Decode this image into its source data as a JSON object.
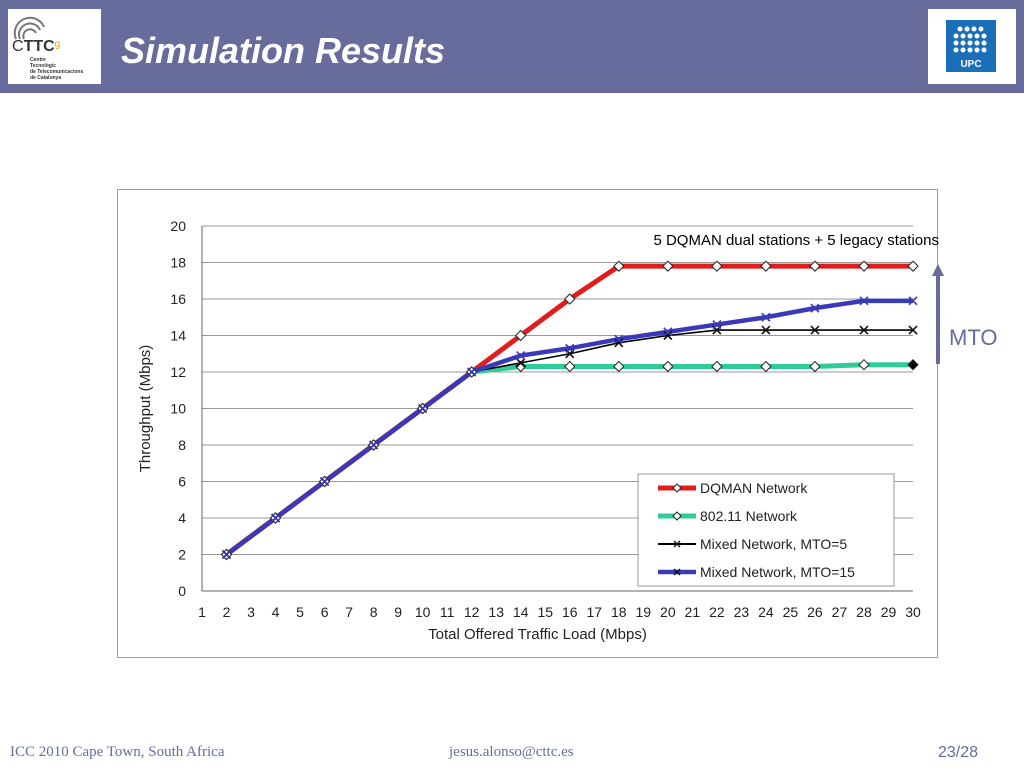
{
  "slide": {
    "title": "Simulation Results",
    "logo_left": {
      "name": "CTTC",
      "brand_main": "C",
      "brand_bold": "TTC",
      "brand_super": "g",
      "lines": [
        "Centre",
        "Tecnològic",
        "de Telecomunicacions",
        "de Catalunya"
      ]
    },
    "logo_right": {
      "name": "UPC"
    },
    "mto_label": "MTO",
    "footer": {
      "left": "ICC 2010 Cape Town, South Africa",
      "center": "jesus.alonso@cttc.es",
      "right": "23/28"
    }
  },
  "colors": {
    "header": "#676c9c",
    "footer_text": "#676c9c",
    "dqman": "#e11e1e",
    "wifi": "#2ecc9a",
    "mixed5": "#000000",
    "mixed15": "#3a3ab8"
  },
  "chart_data": {
    "type": "line",
    "annotation": "5 DQMAN dual stations + 5 legacy stations",
    "xlabel": "Total Offered Traffic Load (Mbps)",
    "ylabel": "Throughput (Mbps)",
    "xlim": [
      1,
      30
    ],
    "ylim": [
      0,
      20
    ],
    "xticks": [
      "1",
      "2",
      "3",
      "4",
      "5",
      "6",
      "7",
      "8",
      "9",
      "10",
      "11",
      "12",
      "13",
      "14",
      "15",
      "16",
      "17",
      "18",
      "19",
      "20",
      "21",
      "22",
      "23",
      "24",
      "25",
      "26",
      "27",
      "28",
      "29",
      "30"
    ],
    "yticks": [
      "0",
      "2",
      "4",
      "6",
      "8",
      "10",
      "12",
      "14",
      "16",
      "18",
      "20"
    ],
    "grid": "horizontal",
    "legend_position": "bottom-right",
    "series": [
      {
        "name": "DQMAN Network",
        "color": "#e11e1e",
        "marker": "diamond",
        "x": [
          2,
          4,
          6,
          8,
          10,
          12,
          14,
          16,
          18,
          20,
          22,
          24,
          26,
          28,
          30
        ],
        "y": [
          2,
          4,
          6,
          8,
          10,
          12,
          14,
          16,
          17.8,
          17.8,
          17.8,
          17.8,
          17.8,
          17.8,
          17.8
        ]
      },
      {
        "name": "802.11 Network",
        "color": "#2ecc9a",
        "marker": "diamond",
        "x": [
          2,
          4,
          6,
          8,
          10,
          12,
          14,
          16,
          18,
          20,
          22,
          24,
          26,
          28,
          30
        ],
        "y": [
          2,
          4,
          6,
          8,
          10,
          12,
          12.3,
          12.3,
          12.3,
          12.3,
          12.3,
          12.3,
          12.3,
          12.4,
          12.4
        ]
      },
      {
        "name": "Mixed Network, MTO=5",
        "color": "#000000",
        "marker": "x",
        "x": [
          2,
          4,
          6,
          8,
          10,
          12,
          14,
          16,
          18,
          20,
          22,
          24,
          26,
          28,
          30
        ],
        "y": [
          2,
          4,
          6,
          8,
          10,
          12,
          12.5,
          13,
          13.6,
          14,
          14.3,
          14.3,
          14.3,
          14.3,
          14.3
        ]
      },
      {
        "name": "Mixed Network, MTO=15",
        "color": "#3a3ab8",
        "marker": "x",
        "x": [
          2,
          4,
          6,
          8,
          10,
          12,
          14,
          16,
          18,
          20,
          22,
          24,
          26,
          28,
          30
        ],
        "y": [
          2,
          4,
          6,
          8,
          10,
          12,
          12.9,
          13.3,
          13.8,
          14.2,
          14.6,
          15.0,
          15.5,
          15.9,
          15.9
        ]
      }
    ]
  }
}
